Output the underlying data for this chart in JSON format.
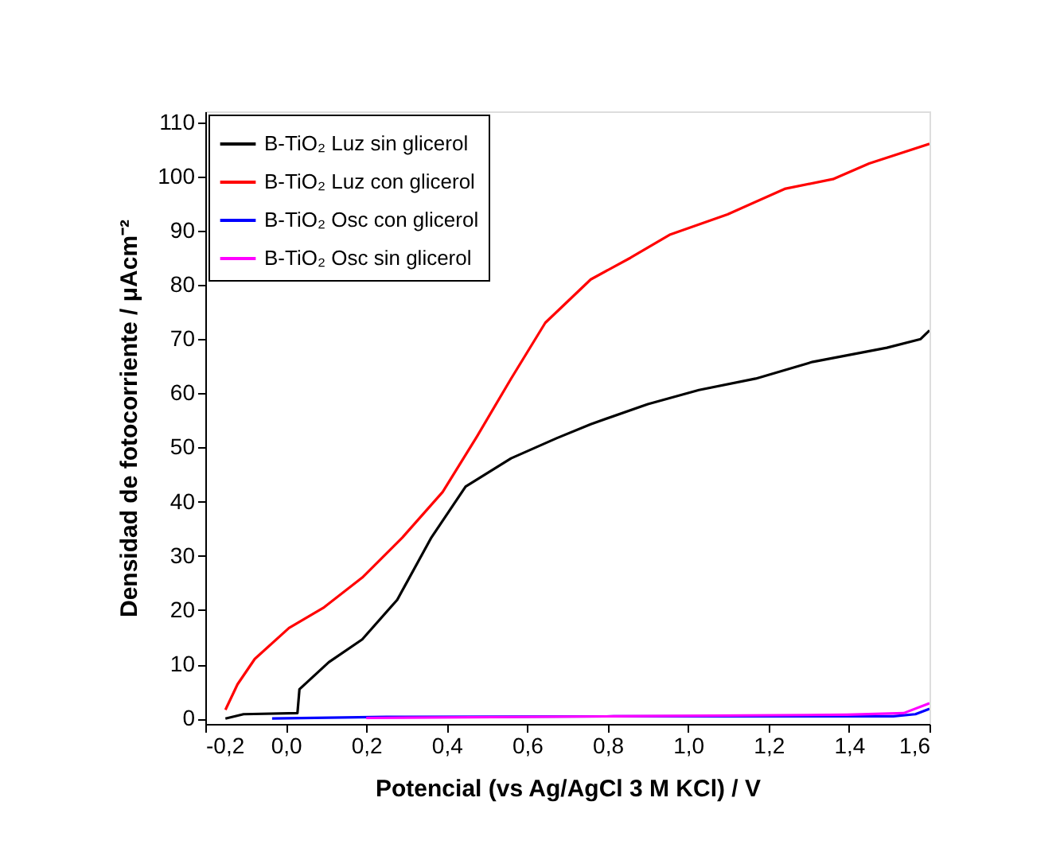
{
  "chart_data": {
    "type": "line",
    "xlabel": "Potencial (vs Ag/AgCl 3 M KCl) / V",
    "ylabel": "Densidad de fotocorriente / μAcm⁻²",
    "xlim": [
      -0.2,
      1.6
    ],
    "ylim": [
      -1,
      112
    ],
    "xticks": [
      {
        "value": -0.2,
        "label": "-0,2"
      },
      {
        "value": 0.0,
        "label": "0,0"
      },
      {
        "value": 0.2,
        "label": "0,2"
      },
      {
        "value": 0.4,
        "label": "0,4"
      },
      {
        "value": 0.6,
        "label": "0,6"
      },
      {
        "value": 0.8,
        "label": "0,8"
      },
      {
        "value": 1.0,
        "label": "1,0"
      },
      {
        "value": 1.2,
        "label": "1,2"
      },
      {
        "value": 1.4,
        "label": "1,4"
      },
      {
        "value": 1.6,
        "label": "1,6"
      }
    ],
    "yticks": [
      0,
      10,
      20,
      30,
      40,
      50,
      60,
      70,
      80,
      90,
      100,
      110
    ],
    "grid": false,
    "legend": "top left",
    "marker": "none",
    "line_style": "solid",
    "series": [
      {
        "name": "B-TiO₂ Luz sin glicerol",
        "color": "#000000",
        "x": [
          -0.15,
          -0.105,
          0.029,
          0.034,
          0.107,
          0.19,
          0.277,
          0.362,
          0.447,
          0.56,
          0.673,
          0.758,
          0.9,
          1.027,
          1.168,
          1.31,
          1.494,
          1.578,
          1.6
        ],
        "values": [
          0,
          0.8,
          1.0,
          5.4,
          10.4,
          14.6,
          21.9,
          33.4,
          42.8,
          48,
          51.7,
          54.3,
          58,
          60.6,
          62.7,
          65.8,
          68.4,
          70,
          71.6
        ]
      },
      {
        "name": "B-TiO₂ Luz con glicerol",
        "color": "#ff0000",
        "x": [
          -0.15,
          -0.12,
          -0.077,
          0.008,
          0.093,
          0.19,
          0.29,
          0.39,
          0.475,
          0.56,
          0.645,
          0.758,
          0.857,
          0.956,
          1.098,
          1.24,
          1.36,
          1.45,
          1.6
        ],
        "values": [
          1.6,
          6.3,
          11,
          16.7,
          20.4,
          26,
          33.4,
          41.8,
          52,
          62.7,
          73,
          81,
          85,
          89.3,
          93,
          97.7,
          99.5,
          102.4,
          106
        ]
      },
      {
        "name": "B-TiO₂ Osc con glicerol",
        "color": "#0000ff",
        "x": [
          -0.034,
          0.25,
          0.815,
          1.51,
          1.565,
          1.6
        ],
        "values": [
          0,
          0.3,
          0.4,
          0.4,
          0.8,
          1.8
        ]
      },
      {
        "name": "B-TiO₂ Osc sin glicerol",
        "color": "#ff00ff",
        "x": [
          0.2,
          0.815,
          1.395,
          1.536,
          1.6
        ],
        "values": [
          0.1,
          0.4,
          0.7,
          1.0,
          2.8
        ]
      }
    ]
  }
}
